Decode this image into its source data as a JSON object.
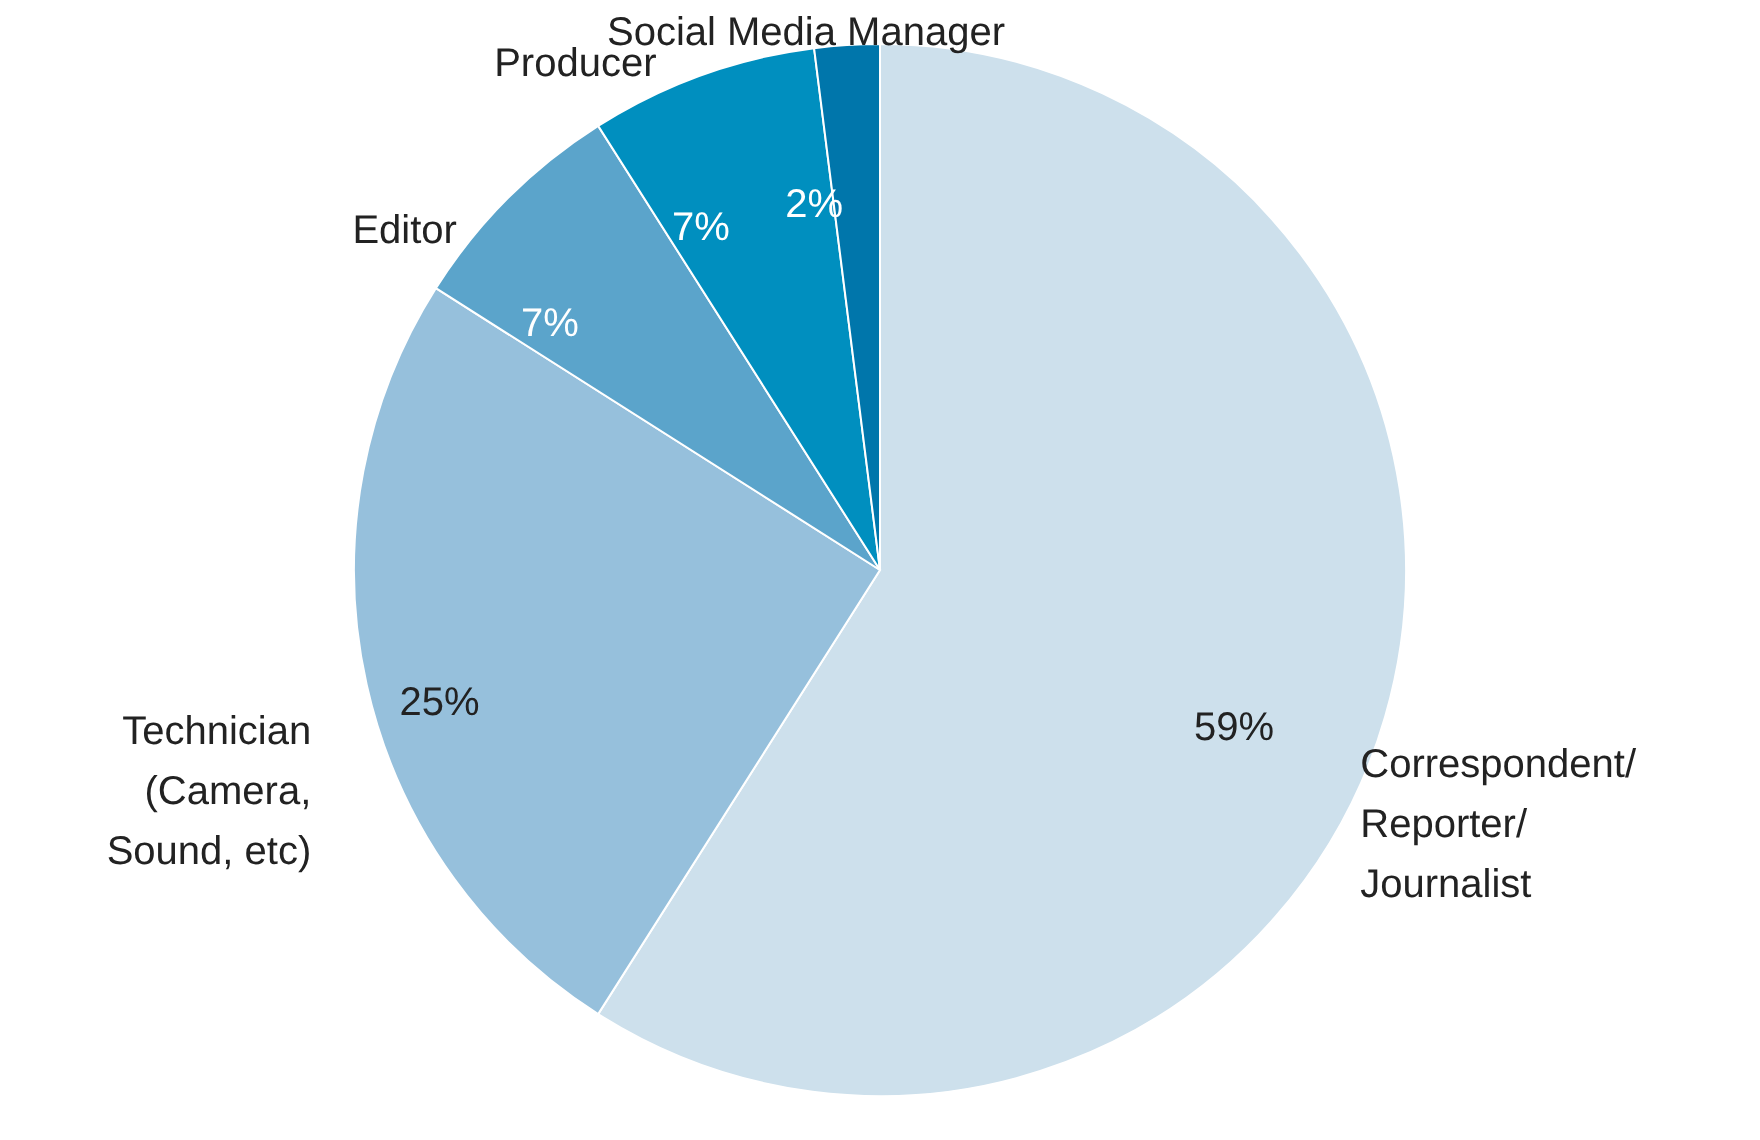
{
  "chart_data": {
    "type": "pie",
    "categories": [
      "Correspondent/\nReporter/\nJournalist",
      "Technician\n(Camera,\nSound, etc)",
      "Editor",
      "Producer",
      "Social Media Manager"
    ],
    "values": [
      59,
      25,
      7,
      7,
      2
    ],
    "value_labels": [
      "59%",
      "25%",
      "7%",
      "7%",
      "2%"
    ],
    "colors": [
      "#cde0ec",
      "#96c0dc",
      "#5ba4cb",
      "#008fbf",
      "#0076ab"
    ]
  }
}
